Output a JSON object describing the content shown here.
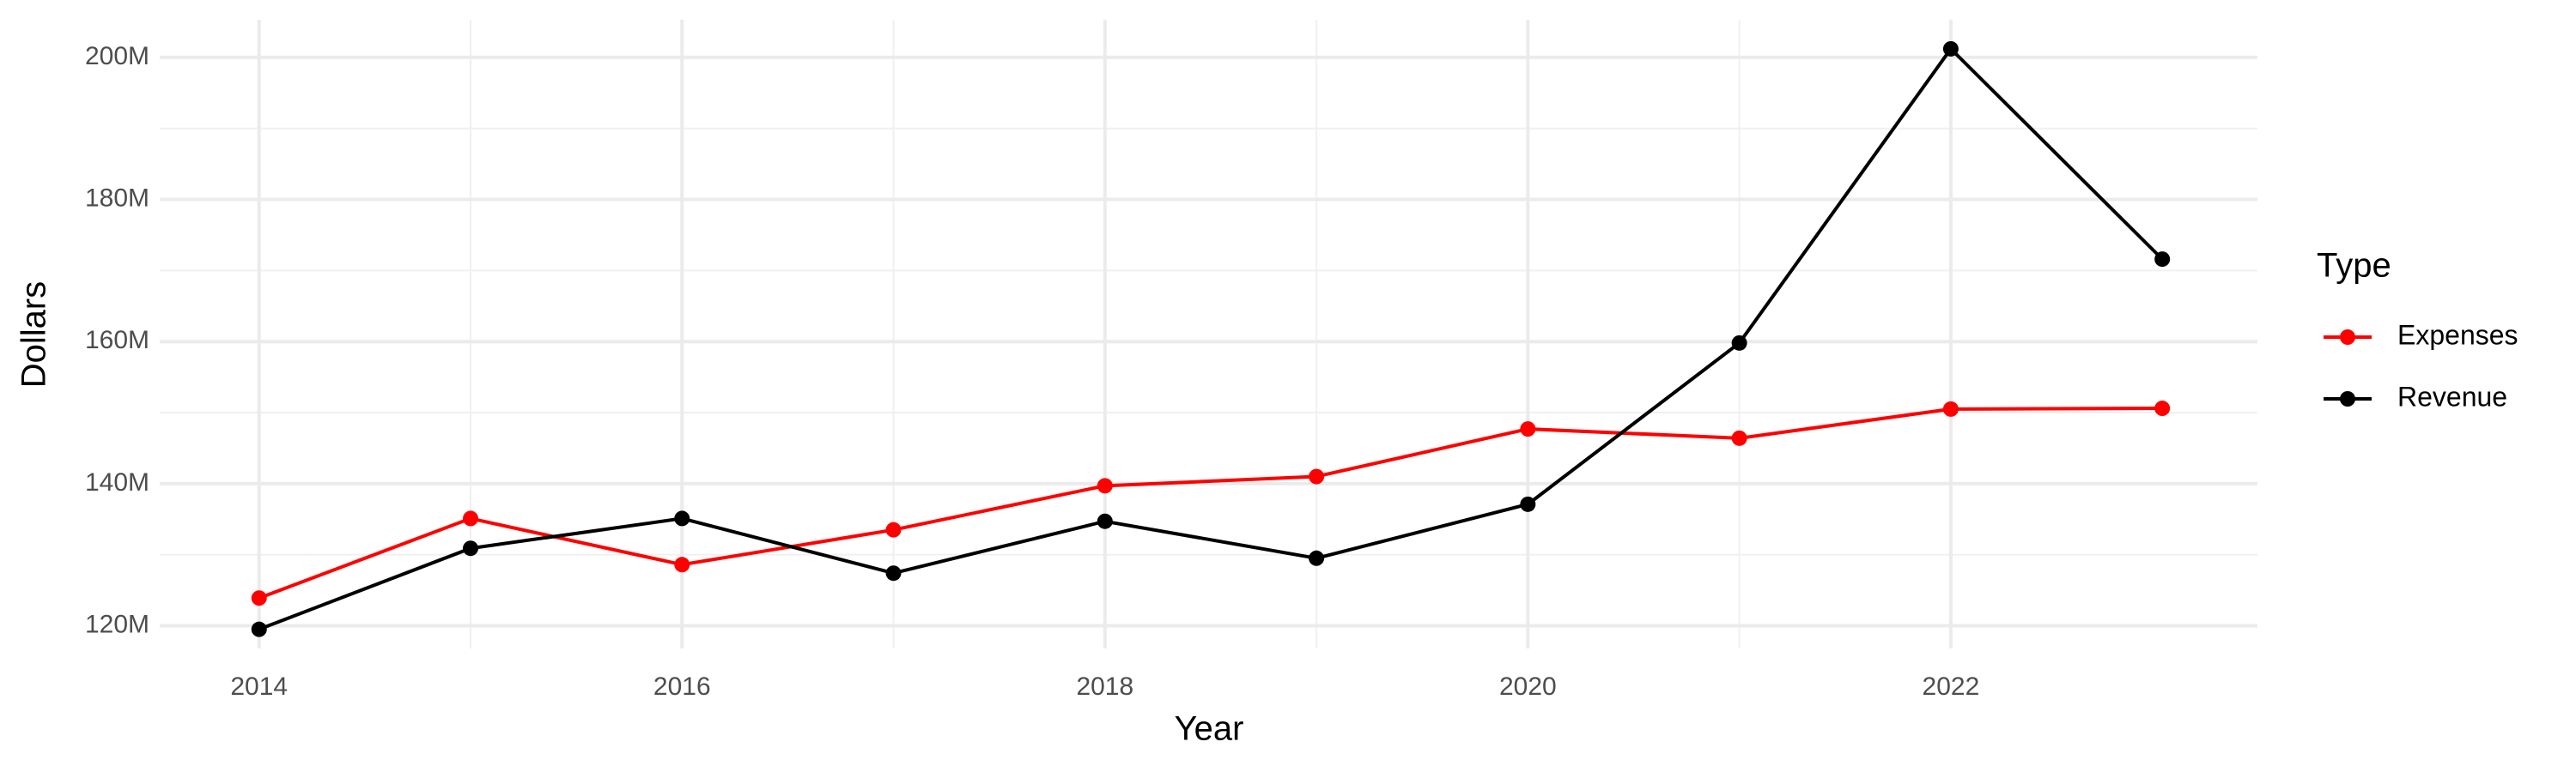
{
  "chart_data": {
    "type": "line",
    "x_label": "Year",
    "y_label": "Dollars",
    "legend_title": "Type",
    "x": [
      2014,
      2015,
      2016,
      2017,
      2018,
      2019,
      2020,
      2021,
      2022,
      2023
    ],
    "series": [
      {
        "name": "Expenses",
        "color": "#ff0000",
        "values": [
          123900000,
          135100000,
          128600000,
          133500000,
          139700000,
          141000000,
          147700000,
          146400000,
          150500000,
          150600000
        ]
      },
      {
        "name": "Revenue",
        "color": "#000000",
        "values": [
          119500000,
          130900000,
          135100000,
          127400000,
          134700000,
          129500000,
          137100000,
          159800000,
          201200000,
          171600000
        ]
      }
    ],
    "xlim": [
      2013.53,
      2023.45
    ],
    "xticks": [
      2014,
      2016,
      2018,
      2020,
      2022
    ],
    "ylim": [
      116800000,
      205300000
    ],
    "yticks": [
      {
        "value": 120000000,
        "label": "120M"
      },
      {
        "value": 140000000,
        "label": "140M"
      },
      {
        "value": 160000000,
        "label": "160M"
      },
      {
        "value": 180000000,
        "label": "180M"
      },
      {
        "value": 200000000,
        "label": "200M"
      }
    ],
    "grid": true,
    "legend": "right"
  }
}
